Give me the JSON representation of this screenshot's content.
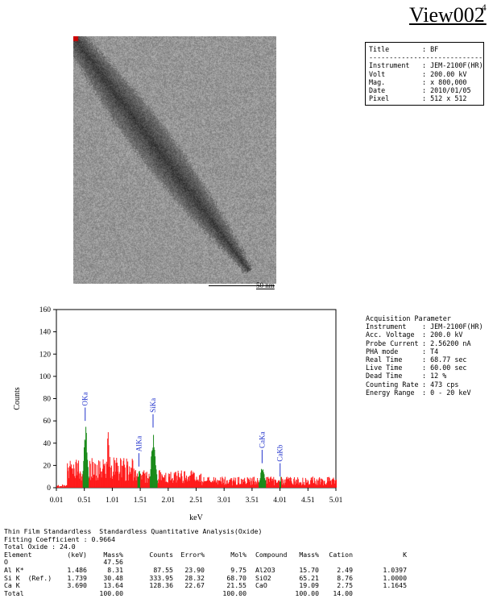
{
  "header": {
    "title": "View002",
    "superscript": "4"
  },
  "image_info": {
    "rows": [
      {
        "label": "Title",
        "value": "BF"
      },
      {
        "label": "Instrument",
        "value": "JEM-2100F(HR)"
      },
      {
        "label": "Volt",
        "value": "200.00 kV"
      },
      {
        "label": "Mag.",
        "value": "x 800,000"
      },
      {
        "label": "Date",
        "value": "2010/01/05"
      },
      {
        "label": "Pixel",
        "value": "512 x 512"
      }
    ]
  },
  "scale_bar": {
    "label": "50 nm"
  },
  "acquisition": {
    "heading": "Acquisition Parameter",
    "rows": [
      {
        "label": "Instrument",
        "value": "JEM-2100F(HR)"
      },
      {
        "label": "Acc. Voltage",
        "value": "200.0 kV"
      },
      {
        "label": "Probe Current",
        "value": "2.56200 nA"
      },
      {
        "label": "PHA mode",
        "value": "T4"
      },
      {
        "label": "Real Time",
        "value": "68.77 sec"
      },
      {
        "label": "Live Time",
        "value": "60.00 sec"
      },
      {
        "label": "Dead Time",
        "value": "12 %"
      },
      {
        "label": "Counting Rate",
        "value": "473 cps"
      },
      {
        "label": "Energy Range",
        "value": "0 - 20 keV"
      }
    ]
  },
  "chart_data": {
    "type": "bar",
    "xlabel": "keV",
    "ylabel": "Counts",
    "xlim": [
      0.01,
      5.01
    ],
    "ylim": [
      0,
      160
    ],
    "x_ticks": [
      "0.01",
      "0.51",
      "1.01",
      "1.51",
      "2.01",
      "2.51",
      "3.01",
      "3.51",
      "4.01",
      "4.51",
      "5.01"
    ],
    "y_ticks": [
      "0",
      "20",
      "40",
      "60",
      "80",
      "100",
      "120",
      "140",
      "160"
    ],
    "series_colors": {
      "background": "#ff1a1a",
      "peaks": "#1a8a1a",
      "annotations": "#2233cc"
    },
    "peaks": [
      {
        "label": "OKa",
        "energy": 0.525,
        "height": 58,
        "width": 0.04
      },
      {
        "label": "AlKa",
        "energy": 1.486,
        "height": 17,
        "width": 0.03
      },
      {
        "label": "SiKa",
        "energy": 1.739,
        "height": 52,
        "width": 0.05
      },
      {
        "label": "CaKa",
        "energy": 3.69,
        "height": 20,
        "width": 0.05
      },
      {
        "label": "CaKb",
        "energy": 4.012,
        "height": 8,
        "width": 0.03
      }
    ],
    "background_features": [
      {
        "energy": 0.93,
        "height": 52
      },
      {
        "energy": 0.27,
        "height": 25
      }
    ]
  },
  "analysis": {
    "title": "Thin Film Standardless  Standardless Quantitative Analysis(Oxide)",
    "fitting": "Fitting Coefficient : 0.9664",
    "total_oxide": "Total Oxide : 24.0",
    "columns": [
      "Element",
      "(keV)",
      "Mass%",
      "Counts",
      "Error%",
      "Mol%",
      "Compound",
      "Mass%",
      "Cation",
      "K"
    ],
    "rows": [
      [
        "O",
        "",
        "47.56",
        "",
        "",
        "",
        "",
        "",
        "",
        ""
      ],
      [
        "Al K*",
        "1.486",
        "8.31",
        "87.55",
        "23.90",
        "9.75",
        "Al2O3",
        "15.70",
        "2.49",
        "1.0397"
      ],
      [
        "Si K  (Ref.)",
        "1.739",
        "30.48",
        "333.95",
        "28.32",
        "68.70",
        "SiO2",
        "65.21",
        "8.76",
        "1.0000"
      ],
      [
        "Ca K",
        "3.690",
        "13.64",
        "128.36",
        "22.67",
        "21.55",
        "CaO",
        "19.09",
        "2.75",
        "1.1645"
      ],
      [
        "Total",
        "",
        "100.00",
        "",
        "",
        "100.00",
        "",
        "100.00",
        "14.00",
        ""
      ]
    ]
  }
}
